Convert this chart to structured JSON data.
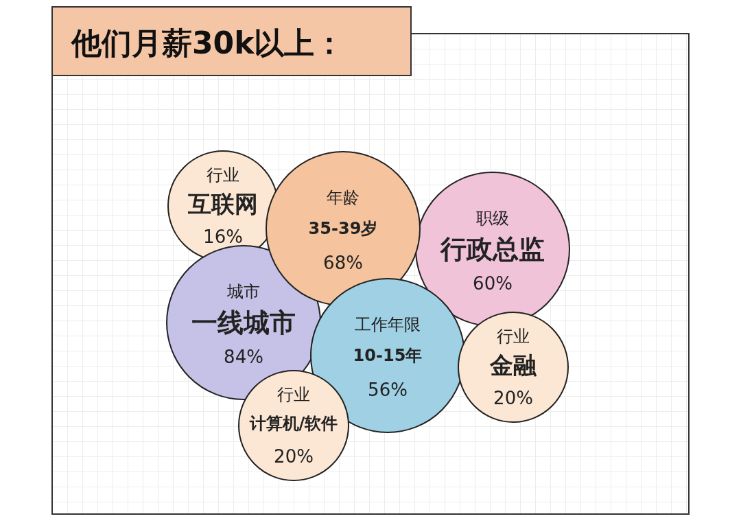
{
  "chart_data": {
    "type": "other",
    "title": "他们月薪30k以上：",
    "categories": [
      "互联网",
      "35-39岁",
      "行政总监",
      "一线城市",
      "10-15年",
      "金融",
      "计算机/软件"
    ],
    "values": [
      16,
      68,
      60,
      84,
      56,
      20,
      20
    ],
    "value_labels": [
      "16%",
      "68%",
      "60%",
      "84%",
      "56%",
      "20%",
      "20%"
    ],
    "colors": [
      "#fbe7d3",
      "#f5c49e",
      "#f1c3d9",
      "#c6c1e6",
      "#9fd0e3",
      "#fbe7d3",
      "#fbe7d3"
    ],
    "annotations": [
      {
        "text": "行业",
        "x": "互联网"
      },
      {
        "text": "年龄",
        "x": "35-39岁"
      },
      {
        "text": "职级",
        "x": "行政总监"
      },
      {
        "text": "城市",
        "x": "一线城市"
      },
      {
        "text": "工作年限",
        "x": "10-15年"
      },
      {
        "text": "行业",
        "x": "金融"
      },
      {
        "text": "行业",
        "x": "计算机/软件"
      }
    ]
  }
}
